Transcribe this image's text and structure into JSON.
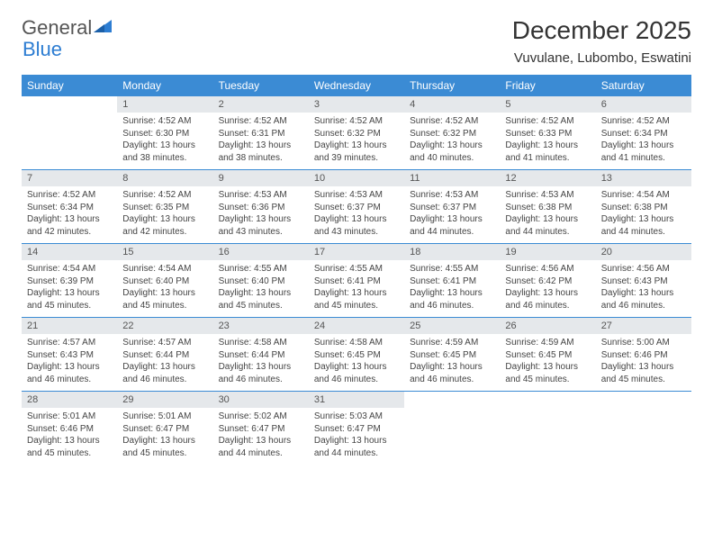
{
  "logo": {
    "text1": "General",
    "text2": "Blue",
    "accent_color": "#2d7dd2"
  },
  "title": "December 2025",
  "subtitle": "Vuvulane, Lubombo, Eswatini",
  "colors": {
    "header_bg": "#3b8bd4",
    "header_text": "#ffffff",
    "daynum_bg": "#e5e8eb",
    "row_border": "#3b8bd4",
    "text": "#444444",
    "background": "#ffffff"
  },
  "day_headers": [
    "Sunday",
    "Monday",
    "Tuesday",
    "Wednesday",
    "Thursday",
    "Friday",
    "Saturday"
  ],
  "weeks": [
    [
      {
        "n": "",
        "sr": "",
        "ss": "",
        "dl": ""
      },
      {
        "n": "1",
        "sr": "Sunrise: 4:52 AM",
        "ss": "Sunset: 6:30 PM",
        "dl": "Daylight: 13 hours and 38 minutes."
      },
      {
        "n": "2",
        "sr": "Sunrise: 4:52 AM",
        "ss": "Sunset: 6:31 PM",
        "dl": "Daylight: 13 hours and 38 minutes."
      },
      {
        "n": "3",
        "sr": "Sunrise: 4:52 AM",
        "ss": "Sunset: 6:32 PM",
        "dl": "Daylight: 13 hours and 39 minutes."
      },
      {
        "n": "4",
        "sr": "Sunrise: 4:52 AM",
        "ss": "Sunset: 6:32 PM",
        "dl": "Daylight: 13 hours and 40 minutes."
      },
      {
        "n": "5",
        "sr": "Sunrise: 4:52 AM",
        "ss": "Sunset: 6:33 PM",
        "dl": "Daylight: 13 hours and 41 minutes."
      },
      {
        "n": "6",
        "sr": "Sunrise: 4:52 AM",
        "ss": "Sunset: 6:34 PM",
        "dl": "Daylight: 13 hours and 41 minutes."
      }
    ],
    [
      {
        "n": "7",
        "sr": "Sunrise: 4:52 AM",
        "ss": "Sunset: 6:34 PM",
        "dl": "Daylight: 13 hours and 42 minutes."
      },
      {
        "n": "8",
        "sr": "Sunrise: 4:52 AM",
        "ss": "Sunset: 6:35 PM",
        "dl": "Daylight: 13 hours and 42 minutes."
      },
      {
        "n": "9",
        "sr": "Sunrise: 4:53 AM",
        "ss": "Sunset: 6:36 PM",
        "dl": "Daylight: 13 hours and 43 minutes."
      },
      {
        "n": "10",
        "sr": "Sunrise: 4:53 AM",
        "ss": "Sunset: 6:37 PM",
        "dl": "Daylight: 13 hours and 43 minutes."
      },
      {
        "n": "11",
        "sr": "Sunrise: 4:53 AM",
        "ss": "Sunset: 6:37 PM",
        "dl": "Daylight: 13 hours and 44 minutes."
      },
      {
        "n": "12",
        "sr": "Sunrise: 4:53 AM",
        "ss": "Sunset: 6:38 PM",
        "dl": "Daylight: 13 hours and 44 minutes."
      },
      {
        "n": "13",
        "sr": "Sunrise: 4:54 AM",
        "ss": "Sunset: 6:38 PM",
        "dl": "Daylight: 13 hours and 44 minutes."
      }
    ],
    [
      {
        "n": "14",
        "sr": "Sunrise: 4:54 AM",
        "ss": "Sunset: 6:39 PM",
        "dl": "Daylight: 13 hours and 45 minutes."
      },
      {
        "n": "15",
        "sr": "Sunrise: 4:54 AM",
        "ss": "Sunset: 6:40 PM",
        "dl": "Daylight: 13 hours and 45 minutes."
      },
      {
        "n": "16",
        "sr": "Sunrise: 4:55 AM",
        "ss": "Sunset: 6:40 PM",
        "dl": "Daylight: 13 hours and 45 minutes."
      },
      {
        "n": "17",
        "sr": "Sunrise: 4:55 AM",
        "ss": "Sunset: 6:41 PM",
        "dl": "Daylight: 13 hours and 45 minutes."
      },
      {
        "n": "18",
        "sr": "Sunrise: 4:55 AM",
        "ss": "Sunset: 6:41 PM",
        "dl": "Daylight: 13 hours and 46 minutes."
      },
      {
        "n": "19",
        "sr": "Sunrise: 4:56 AM",
        "ss": "Sunset: 6:42 PM",
        "dl": "Daylight: 13 hours and 46 minutes."
      },
      {
        "n": "20",
        "sr": "Sunrise: 4:56 AM",
        "ss": "Sunset: 6:43 PM",
        "dl": "Daylight: 13 hours and 46 minutes."
      }
    ],
    [
      {
        "n": "21",
        "sr": "Sunrise: 4:57 AM",
        "ss": "Sunset: 6:43 PM",
        "dl": "Daylight: 13 hours and 46 minutes."
      },
      {
        "n": "22",
        "sr": "Sunrise: 4:57 AM",
        "ss": "Sunset: 6:44 PM",
        "dl": "Daylight: 13 hours and 46 minutes."
      },
      {
        "n": "23",
        "sr": "Sunrise: 4:58 AM",
        "ss": "Sunset: 6:44 PM",
        "dl": "Daylight: 13 hours and 46 minutes."
      },
      {
        "n": "24",
        "sr": "Sunrise: 4:58 AM",
        "ss": "Sunset: 6:45 PM",
        "dl": "Daylight: 13 hours and 46 minutes."
      },
      {
        "n": "25",
        "sr": "Sunrise: 4:59 AM",
        "ss": "Sunset: 6:45 PM",
        "dl": "Daylight: 13 hours and 46 minutes."
      },
      {
        "n": "26",
        "sr": "Sunrise: 4:59 AM",
        "ss": "Sunset: 6:45 PM",
        "dl": "Daylight: 13 hours and 45 minutes."
      },
      {
        "n": "27",
        "sr": "Sunrise: 5:00 AM",
        "ss": "Sunset: 6:46 PM",
        "dl": "Daylight: 13 hours and 45 minutes."
      }
    ],
    [
      {
        "n": "28",
        "sr": "Sunrise: 5:01 AM",
        "ss": "Sunset: 6:46 PM",
        "dl": "Daylight: 13 hours and 45 minutes."
      },
      {
        "n": "29",
        "sr": "Sunrise: 5:01 AM",
        "ss": "Sunset: 6:47 PM",
        "dl": "Daylight: 13 hours and 45 minutes."
      },
      {
        "n": "30",
        "sr": "Sunrise: 5:02 AM",
        "ss": "Sunset: 6:47 PM",
        "dl": "Daylight: 13 hours and 44 minutes."
      },
      {
        "n": "31",
        "sr": "Sunrise: 5:03 AM",
        "ss": "Sunset: 6:47 PM",
        "dl": "Daylight: 13 hours and 44 minutes."
      },
      {
        "n": "",
        "sr": "",
        "ss": "",
        "dl": ""
      },
      {
        "n": "",
        "sr": "",
        "ss": "",
        "dl": ""
      },
      {
        "n": "",
        "sr": "",
        "ss": "",
        "dl": ""
      }
    ]
  ]
}
